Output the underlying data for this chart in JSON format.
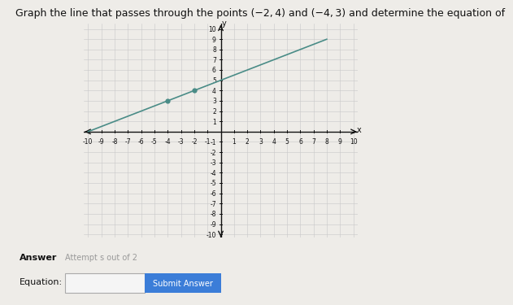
{
  "title_text": "Graph the line that passes through the points (−2, 4) and (−4, 3) and determine the equation of",
  "x_range": [
    -10,
    10
  ],
  "y_range": [
    -10,
    10
  ],
  "points": [
    [
      -4,
      3
    ],
    [
      -2,
      4
    ]
  ],
  "line_x_start": -10,
  "line_x_end": 8,
  "line_slope": 0.5,
  "line_intercept": 5,
  "line_color": "#4a8c87",
  "point_color": "#4a8c87",
  "grid_color": "#c8c8c8",
  "axis_color": "#111111",
  "bg_color": "#eeece8",
  "answer_label": "Answer",
  "attempt_label": "Attempt s out of 2",
  "equation_label": "Equation:",
  "button_label": "Submit Answer",
  "button_color": "#3b7dd8",
  "button_text_color": "#ffffff",
  "title_fontsize": 9,
  "tick_fontsize": 5.5,
  "axis_label_fontsize": 7
}
